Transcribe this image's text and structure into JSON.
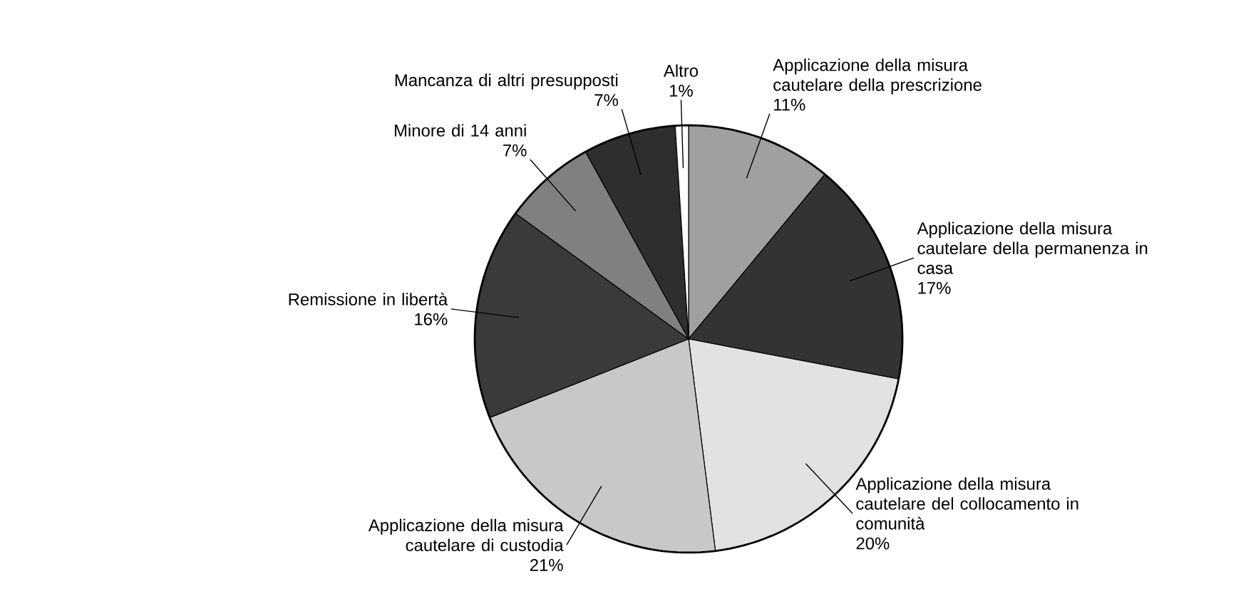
{
  "chart_data": {
    "type": "pie",
    "categories": [
      "Applicazione della misura cautelare della prescrizione",
      "Applicazione della misura cautelare della permanenza in casa",
      "Applicazione della misura cautelare del collocamento in comunità",
      "Applicazione della misura cautelare di custodia",
      "Remissione in libertà",
      "Minore di 14 anni",
      "Mancanza di altri presupposti",
      "Altro"
    ],
    "values": [
      11,
      17,
      20,
      21,
      16,
      7,
      7,
      1
    ],
    "value_labels": [
      "11%",
      "17%",
      "20%",
      "21%",
      "16%",
      "7%",
      "7%",
      "1%"
    ],
    "colors": [
      "#a0a0a0",
      "#333333",
      "#e2e2e2",
      "#c8c8c8",
      "#3a3a3a",
      "#808080",
      "#2e2e2e",
      "#ffffff"
    ]
  }
}
